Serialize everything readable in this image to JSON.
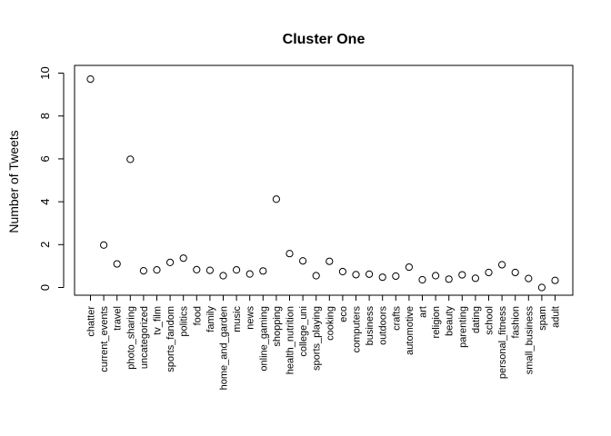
{
  "chart_data": {
    "type": "scatter",
    "title": "Cluster One",
    "xlabel": "",
    "ylabel": "Number of Tweets",
    "ylim": [
      0,
      10
    ],
    "yticks": [
      "0",
      "2",
      "4",
      "6",
      "8",
      "10"
    ],
    "grid": false,
    "categories": [
      "chatter",
      "current_events",
      "travel",
      "photo_sharing",
      "uncategorized",
      "tv_film",
      "sports_fandom",
      "politics",
      "food",
      "family",
      "home_and_garden",
      "music",
      "news",
      "online_gaming",
      "shopping",
      "health_nutrition",
      "college_uni",
      "sports_playing",
      "cooking",
      "eco",
      "computers",
      "business",
      "outdoors",
      "crafts",
      "automotive",
      "art",
      "religion",
      "beauty",
      "parenting",
      "dating",
      "school",
      "personal_fitness",
      "fashion",
      "small_business",
      "spam",
      "adult"
    ],
    "values": [
      9.72,
      1.98,
      1.1,
      5.98,
      0.78,
      0.82,
      1.17,
      1.37,
      0.83,
      0.8,
      0.55,
      0.82,
      0.63,
      0.77,
      4.12,
      1.58,
      1.24,
      0.55,
      1.22,
      0.74,
      0.6,
      0.62,
      0.48,
      0.53,
      0.95,
      0.36,
      0.55,
      0.39,
      0.59,
      0.43,
      0.7,
      1.06,
      0.7,
      0.42,
      0.0,
      0.33
    ]
  }
}
